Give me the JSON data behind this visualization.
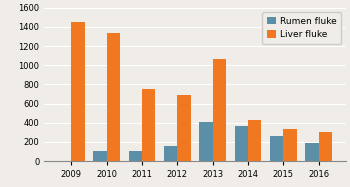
{
  "years": [
    2009,
    2010,
    2011,
    2012,
    2013,
    2014,
    2015,
    2016
  ],
  "rumen_fluke": [
    0,
    100,
    100,
    160,
    410,
    370,
    265,
    190
  ],
  "liver_fluke": [
    1450,
    1340,
    750,
    690,
    1060,
    430,
    330,
    300
  ],
  "rumen_color": "#5b8fa8",
  "liver_color": "#f07820",
  "ylim": [
    0,
    1600
  ],
  "yticks": [
    0,
    200,
    400,
    600,
    800,
    1000,
    1200,
    1400,
    1600
  ],
  "background_color": "#f0ede8",
  "legend_labels": [
    "Rumen fluke",
    "Liver fluke"
  ],
  "bar_width": 0.38,
  "tick_fontsize": 6,
  "legend_fontsize": 6.5
}
